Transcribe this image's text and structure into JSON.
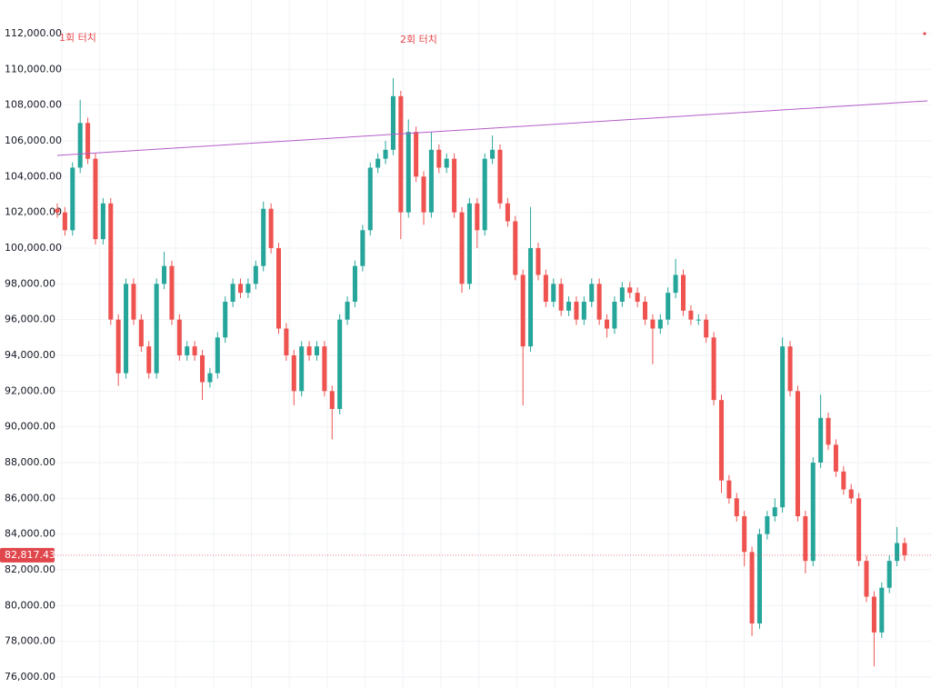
{
  "chart_data": {
    "type": "candlestick",
    "up_color": "#26a69a",
    "down_color": "#ef5350",
    "ylim": [
      75390,
      113880
    ],
    "grid": true,
    "yticks": [
      {
        "value": 76000,
        "label": "76,000.00"
      },
      {
        "value": 78000,
        "label": "78,000.00"
      },
      {
        "value": 80000,
        "label": "80,000.00"
      },
      {
        "value": 82000,
        "label": "82,000.00"
      },
      {
        "value": 84000,
        "label": "84,000.00"
      },
      {
        "value": 86000,
        "label": "86,000.00"
      },
      {
        "value": 88000,
        "label": "88,000.00"
      },
      {
        "value": 90000,
        "label": "90,000.00"
      },
      {
        "value": 92000,
        "label": "92,000.00"
      },
      {
        "value": 94000,
        "label": "94,000.00"
      },
      {
        "value": 96000,
        "label": "96,000.00"
      },
      {
        "value": 98000,
        "label": "98,000.00"
      },
      {
        "value": 100000,
        "label": "100,000.00"
      },
      {
        "value": 102000,
        "label": "102,000.00"
      },
      {
        "value": 104000,
        "label": "104,000.00"
      },
      {
        "value": 106000,
        "label": "106,000.00"
      },
      {
        "value": 108000,
        "label": "108,000.00"
      },
      {
        "value": 110000,
        "label": "110,000.00"
      },
      {
        "value": 112000,
        "label": "112,000.00"
      }
    ],
    "open": [
      102200,
      102000,
      101000,
      104500,
      107000,
      105000,
      100500,
      102500,
      96000,
      93000,
      98000,
      96000,
      94500,
      93000,
      98000,
      99000,
      96000,
      94000,
      94500,
      94000,
      92500,
      93000,
      95000,
      97000,
      98000,
      97500,
      98000,
      99000,
      102200,
      100000,
      95500,
      94000,
      92000,
      94500,
      94000,
      94500,
      92000,
      91000,
      96000,
      97000,
      99000,
      101000,
      104500,
      105000,
      105500,
      108500,
      102000,
      106500,
      104000,
      102000,
      105500,
      104500,
      105000,
      102000,
      98000,
      102500,
      101000,
      105000,
      105500,
      102500,
      101500,
      98500,
      94500,
      100000,
      98500,
      97000,
      98000,
      96500,
      97000,
      96000,
      97000,
      98000,
      96000,
      95500,
      97000,
      97800,
      97500,
      97000,
      96000,
      95500,
      96000,
      97500,
      98500,
      96500,
      96000,
      96000,
      95000,
      91500,
      87000,
      86000,
      85000,
      83000,
      79000,
      84000,
      85000,
      85500,
      94500,
      92000,
      85000,
      82500,
      88000,
      90500,
      89000,
      87500,
      86500,
      86000,
      82500,
      80500,
      78500,
      81000,
      82500,
      83500
    ],
    "high": [
      102500,
      102300,
      104800,
      108300,
      107300,
      105300,
      102800,
      102800,
      96300,
      98300,
      98300,
      96300,
      94800,
      98300,
      99800,
      99300,
      96300,
      94800,
      94800,
      94300,
      93300,
      95300,
      97300,
      98300,
      98300,
      98300,
      99300,
      102600,
      102500,
      100300,
      95800,
      94300,
      94800,
      94800,
      94800,
      94800,
      92300,
      96300,
      97300,
      99300,
      101300,
      104800,
      105300,
      106000,
      109500,
      108800,
      107200,
      106800,
      104300,
      106500,
      105800,
      105300,
      105300,
      102300,
      102800,
      102800,
      105300,
      106300,
      105800,
      102800,
      101800,
      98800,
      102300,
      100300,
      98800,
      98300,
      98300,
      97300,
      97300,
      97300,
      98300,
      98300,
      96300,
      97300,
      98100,
      98100,
      97800,
      97300,
      96300,
      96300,
      97800,
      99400,
      98800,
      96800,
      96300,
      96300,
      95300,
      91800,
      87300,
      86300,
      85300,
      83300,
      84300,
      85300,
      86000,
      95000,
      94800,
      92300,
      85300,
      88300,
      91800,
      90800,
      89300,
      87800,
      86800,
      86300,
      82800,
      80800,
      81300,
      82800,
      84400,
      83800
    ],
    "low": [
      101700,
      100700,
      100700,
      104200,
      104700,
      100200,
      100200,
      95700,
      92300,
      92700,
      95700,
      94200,
      92700,
      92700,
      97700,
      95700,
      93700,
      93700,
      93700,
      91500,
      92200,
      92700,
      94700,
      96700,
      97200,
      97200,
      97700,
      98700,
      99700,
      95200,
      93700,
      91200,
      91700,
      93700,
      93700,
      91700,
      89300,
      90700,
      95700,
      96700,
      98700,
      100700,
      104200,
      104700,
      105200,
      100500,
      101700,
      103700,
      101300,
      101700,
      104200,
      104200,
      101700,
      97500,
      97700,
      100000,
      100700,
      104700,
      102200,
      101200,
      98200,
      91200,
      94200,
      98200,
      96700,
      96700,
      96200,
      96200,
      95700,
      95700,
      96700,
      95700,
      95000,
      95200,
      96700,
      97200,
      96700,
      95700,
      93500,
      95200,
      95700,
      97200,
      96200,
      95700,
      95700,
      94700,
      91200,
      86300,
      85700,
      84700,
      82200,
      78300,
      78700,
      83700,
      84700,
      85200,
      91700,
      84700,
      81800,
      82200,
      87700,
      88700,
      87200,
      86200,
      85700,
      82200,
      80200,
      76600,
      78200,
      80700,
      82200,
      82500
    ],
    "close": [
      102000,
      101000,
      104500,
      107000,
      105000,
      100500,
      102500,
      96000,
      93000,
      98000,
      96000,
      94500,
      93000,
      98000,
      99000,
      96000,
      94000,
      94500,
      94000,
      92500,
      93000,
      95000,
      97000,
      98000,
      97500,
      98000,
      99000,
      102200,
      100000,
      95500,
      94000,
      92000,
      94500,
      94000,
      94500,
      92000,
      91000,
      96000,
      97000,
      99000,
      101000,
      104500,
      105000,
      105500,
      108500,
      102000,
      106500,
      104000,
      102000,
      105500,
      104500,
      105000,
      102000,
      98000,
      102500,
      101000,
      105000,
      105500,
      102500,
      101500,
      98500,
      94500,
      100000,
      98500,
      97000,
      98000,
      96500,
      97000,
      96000,
      97000,
      98000,
      96000,
      95500,
      97000,
      97800,
      97500,
      97000,
      96000,
      95500,
      96000,
      97500,
      98500,
      96500,
      96000,
      96000,
      95000,
      91500,
      87000,
      86000,
      85000,
      83000,
      79000,
      84000,
      85000,
      85500,
      94500,
      92000,
      85000,
      82500,
      88000,
      90500,
      89000,
      87500,
      86500,
      86000,
      82500,
      80500,
      78500,
      81000,
      82500,
      83500,
      82817.43
    ],
    "last_price": {
      "value": 82817.43,
      "label": "82,817.43"
    },
    "last_price_color": "#e0474c",
    "trendline": {
      "color": "#b45cc8",
      "x": [
        0,
        114
      ],
      "values": [
        105186,
        108237
      ]
    },
    "annotations": [
      {
        "text": "1회 터치"
      },
      {
        "text": "2회 터치"
      }
    ],
    "annotation_color": "#e5484d"
  }
}
